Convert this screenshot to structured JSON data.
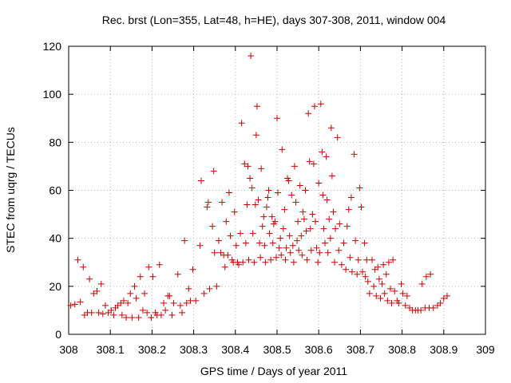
{
  "chart_data": {
    "type": "scatter",
    "title": "Rec. brst (Lon=355, Lat=48, h=HE), days 307-308, 2011, window 004",
    "xlabel": "GPS time / Days of year 2011",
    "ylabel": "STEC from uqrg / TECUs",
    "xlim": [
      308,
      309
    ],
    "ylim": [
      0,
      120
    ],
    "x_ticks": [
      "308",
      "308.1",
      "308.2",
      "308.3",
      "308.4",
      "308.5",
      "308.6",
      "308.7",
      "308.8",
      "308.9",
      "309"
    ],
    "y_ticks": [
      "0",
      "20",
      "40",
      "60",
      "80",
      "100",
      "120"
    ],
    "grid": true,
    "marker": "plus",
    "marker_color": "#cc0000",
    "grid_color": "#b0b0b0",
    "points": [
      [
        308.005,
        12
      ],
      [
        308.015,
        12.5
      ],
      [
        308.022,
        31
      ],
      [
        308.028,
        13.5
      ],
      [
        308.035,
        28
      ],
      [
        308.038,
        8
      ],
      [
        308.045,
        9
      ],
      [
        308.05,
        23
      ],
      [
        308.055,
        9
      ],
      [
        308.06,
        17
      ],
      [
        308.068,
        18
      ],
      [
        308.072,
        9
      ],
      [
        308.078,
        21
      ],
      [
        308.082,
        8.5
      ],
      [
        308.088,
        12
      ],
      [
        308.095,
        9
      ],
      [
        308.102,
        10
      ],
      [
        308.108,
        8
      ],
      [
        308.112,
        11
      ],
      [
        308.118,
        12
      ],
      [
        308.125,
        13
      ],
      [
        308.128,
        8
      ],
      [
        308.132,
        14
      ],
      [
        308.138,
        7
      ],
      [
        308.142,
        13
      ],
      [
        308.148,
        17
      ],
      [
        308.152,
        7
      ],
      [
        308.158,
        20
      ],
      [
        308.162,
        15
      ],
      [
        308.168,
        7
      ],
      [
        308.172,
        24
      ],
      [
        308.178,
        10
      ],
      [
        308.182,
        17
      ],
      [
        308.188,
        9
      ],
      [
        308.192,
        28
      ],
      [
        308.198,
        7
      ],
      [
        308.202,
        24
      ],
      [
        308.208,
        9
      ],
      [
        308.212,
        8
      ],
      [
        308.218,
        29
      ],
      [
        308.222,
        8
      ],
      [
        308.228,
        13
      ],
      [
        308.232,
        10
      ],
      [
        308.238,
        16
      ],
      [
        308.242,
        16
      ],
      [
        308.248,
        8
      ],
      [
        308.252,
        13
      ],
      [
        308.262,
        25
      ],
      [
        308.268,
        12
      ],
      [
        308.272,
        9
      ],
      [
        308.278,
        39
      ],
      [
        308.283,
        13
      ],
      [
        308.288,
        19
      ],
      [
        308.292,
        14
      ],
      [
        308.298,
        27
      ],
      [
        308.305,
        14
      ],
      [
        308.315,
        37
      ],
      [
        308.318,
        64
      ],
      [
        308.325,
        17
      ],
      [
        308.332,
        53
      ],
      [
        308.335,
        55
      ],
      [
        308.338,
        19
      ],
      [
        308.345,
        45
      ],
      [
        308.348,
        68
      ],
      [
        308.35,
        34
      ],
      [
        308.355,
        20
      ],
      [
        308.36,
        39
      ],
      [
        308.365,
        34
      ],
      [
        308.368,
        55
      ],
      [
        308.372,
        33
      ],
      [
        308.375,
        28
      ],
      [
        308.378,
        47
      ],
      [
        308.382,
        33
      ],
      [
        308.385,
        59
      ],
      [
        308.388,
        41
      ],
      [
        308.392,
        31
      ],
      [
        308.395,
        30
      ],
      [
        308.398,
        51
      ],
      [
        308.402,
        37
      ],
      [
        308.405,
        30
      ],
      [
        308.408,
        29
      ],
      [
        308.412,
        42
      ],
      [
        308.415,
        88
      ],
      [
        308.418,
        30
      ],
      [
        308.422,
        71
      ],
      [
        308.425,
        38
      ],
      [
        308.428,
        54
      ],
      [
        308.43,
        70
      ],
      [
        308.432,
        31
      ],
      [
        308.435,
        65
      ],
      [
        308.437,
        116
      ],
      [
        308.44,
        61
      ],
      [
        308.442,
        42
      ],
      [
        308.445,
        30
      ],
      [
        308.448,
        54
      ],
      [
        308.45,
        83
      ],
      [
        308.452,
        95
      ],
      [
        308.455,
        56
      ],
      [
        308.458,
        38
      ],
      [
        308.46,
        32
      ],
      [
        308.462,
        69
      ],
      [
        308.465,
        45
      ],
      [
        308.468,
        49
      ],
      [
        308.47,
        37
      ],
      [
        308.472,
        30
      ],
      [
        308.475,
        53
      ],
      [
        308.478,
        57
      ],
      [
        308.48,
        60
      ],
      [
        308.482,
        42
      ],
      [
        308.485,
        31
      ],
      [
        308.488,
        49
      ],
      [
        308.49,
        38
      ],
      [
        308.492,
        46
      ],
      [
        308.495,
        47
      ],
      [
        308.498,
        32
      ],
      [
        308.5,
        90
      ],
      [
        308.502,
        59
      ],
      [
        308.505,
        36
      ],
      [
        308.508,
        40
      ],
      [
        308.51,
        33
      ],
      [
        308.512,
        77
      ],
      [
        308.515,
        44
      ],
      [
        308.518,
        52
      ],
      [
        308.52,
        31
      ],
      [
        308.522,
        36
      ],
      [
        308.525,
        65
      ],
      [
        308.528,
        64
      ],
      [
        308.53,
        41
      ],
      [
        308.532,
        34
      ],
      [
        308.535,
        58
      ],
      [
        308.538,
        37
      ],
      [
        308.54,
        30
      ],
      [
        308.542,
        70
      ],
      [
        308.545,
        55
      ],
      [
        308.548,
        39
      ],
      [
        308.55,
        47
      ],
      [
        308.552,
        35
      ],
      [
        308.555,
        62
      ],
      [
        308.558,
        41
      ],
      [
        308.56,
        33
      ],
      [
        308.562,
        51
      ],
      [
        308.565,
        48
      ],
      [
        308.568,
        60
      ],
      [
        308.57,
        43
      ],
      [
        308.572,
        31
      ],
      [
        308.575,
        92
      ],
      [
        308.578,
        72
      ],
      [
        308.58,
        44
      ],
      [
        308.582,
        35
      ],
      [
        308.585,
        50
      ],
      [
        308.588,
        71
      ],
      [
        308.59,
        95
      ],
      [
        308.592,
        47
      ],
      [
        308.595,
        36
      ],
      [
        308.598,
        30
      ],
      [
        308.6,
        63
      ],
      [
        308.602,
        34
      ],
      [
        308.605,
        96
      ],
      [
        308.608,
        76
      ],
      [
        308.61,
        58
      ],
      [
        308.612,
        44
      ],
      [
        308.615,
        38
      ],
      [
        308.618,
        74
      ],
      [
        308.62,
        56
      ],
      [
        308.622,
        34
      ],
      [
        308.625,
        48
      ],
      [
        308.628,
        40
      ],
      [
        308.63,
        86
      ],
      [
        308.632,
        66
      ],
      [
        308.635,
        51
      ],
      [
        308.638,
        30
      ],
      [
        308.64,
        44
      ],
      [
        308.645,
        82
      ],
      [
        308.648,
        35
      ],
      [
        308.65,
        46
      ],
      [
        308.655,
        29
      ],
      [
        308.66,
        38
      ],
      [
        308.665,
        27
      ],
      [
        308.668,
        45
      ],
      [
        308.672,
        52
      ],
      [
        308.675,
        32
      ],
      [
        308.678,
        57
      ],
      [
        308.68,
        26
      ],
      [
        308.685,
        75
      ],
      [
        308.688,
        39
      ],
      [
        308.692,
        25
      ],
      [
        308.695,
        31
      ],
      [
        308.698,
        61
      ],
      [
        308.702,
        53
      ],
      [
        308.705,
        26
      ],
      [
        308.71,
        38
      ],
      [
        308.712,
        24
      ],
      [
        308.715,
        31
      ],
      [
        308.718,
        22
      ],
      [
        308.722,
        17
      ],
      [
        308.728,
        31
      ],
      [
        308.732,
        20
      ],
      [
        308.735,
        27
      ],
      [
        308.738,
        16
      ],
      [
        308.742,
        28
      ],
      [
        308.745,
        23
      ],
      [
        308.748,
        15
      ],
      [
        308.752,
        21
      ],
      [
        308.755,
        29
      ],
      [
        308.758,
        17
      ],
      [
        308.762,
        25
      ],
      [
        308.765,
        14
      ],
      [
        308.768,
        30
      ],
      [
        308.772,
        19
      ],
      [
        308.775,
        13
      ],
      [
        308.778,
        31
      ],
      [
        308.782,
        18
      ],
      [
        308.788,
        14
      ],
      [
        308.792,
        13
      ],
      [
        308.798,
        21
      ],
      [
        308.802,
        17
      ],
      [
        308.808,
        12
      ],
      [
        308.812,
        16
      ],
      [
        308.818,
        11
      ],
      [
        308.825,
        10
      ],
      [
        308.832,
        10
      ],
      [
        308.838,
        10
      ],
      [
        308.845,
        10
      ],
      [
        308.848,
        21
      ],
      [
        308.855,
        11
      ],
      [
        308.858,
        24
      ],
      [
        308.865,
        11
      ],
      [
        308.868,
        25
      ],
      [
        308.875,
        11
      ],
      [
        308.885,
        12
      ],
      [
        308.892,
        13
      ],
      [
        308.9,
        15
      ],
      [
        308.908,
        16
      ]
    ]
  }
}
